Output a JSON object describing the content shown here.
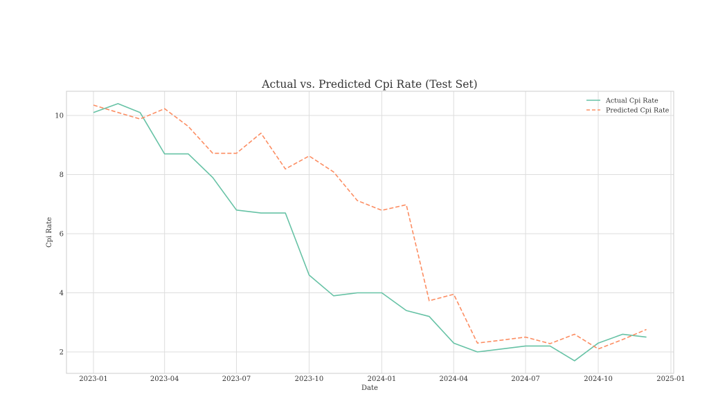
{
  "chart_data": {
    "type": "line",
    "title": "Actual vs. Predicted Cpi Rate (Test Set)",
    "xlabel": "Date",
    "ylabel": "Cpi Rate",
    "x": [
      "2023-01",
      "2023-02",
      "2023-03",
      "2023-04",
      "2023-05",
      "2023-06",
      "2023-07",
      "2023-08",
      "2023-09",
      "2023-10",
      "2023-11",
      "2023-12",
      "2024-01",
      "2024-02",
      "2024-03",
      "2024-04",
      "2024-05",
      "2024-06",
      "2024-07",
      "2024-08",
      "2024-09",
      "2024-10",
      "2024-11",
      "2024-12"
    ],
    "series": [
      {
        "name": "Actual Cpi Rate",
        "color": "#66c2a5",
        "style": "solid",
        "values": [
          10.1,
          10.4,
          10.1,
          8.7,
          8.7,
          7.9,
          6.8,
          6.7,
          6.7,
          4.6,
          3.9,
          4.0,
          4.0,
          3.4,
          3.2,
          2.3,
          2.0,
          2.1,
          2.2,
          2.2,
          1.7,
          2.3,
          2.6,
          2.5
        ]
      },
      {
        "name": "Predicted Cpi Rate",
        "color": "#fc8d62",
        "style": "dashed",
        "values": [
          10.35,
          10.1,
          9.88,
          10.23,
          9.63,
          8.72,
          8.72,
          9.4,
          8.19,
          8.63,
          8.09,
          7.12,
          6.79,
          6.98,
          3.73,
          3.95,
          2.3,
          2.4,
          2.5,
          2.28,
          2.6,
          2.1,
          2.42,
          2.76
        ]
      }
    ],
    "xticks": [
      "2023-01",
      "2023-04",
      "2023-07",
      "2023-10",
      "2024-01",
      "2024-04",
      "2024-07",
      "2024-10",
      "2025-01"
    ],
    "yticks": [
      2,
      4,
      6,
      8,
      10
    ],
    "ylim": [
      1.3,
      10.85
    ],
    "xlim": [
      "2022-12-01",
      "2025-01-05"
    ],
    "grid": true,
    "legend_position": "upper right"
  }
}
